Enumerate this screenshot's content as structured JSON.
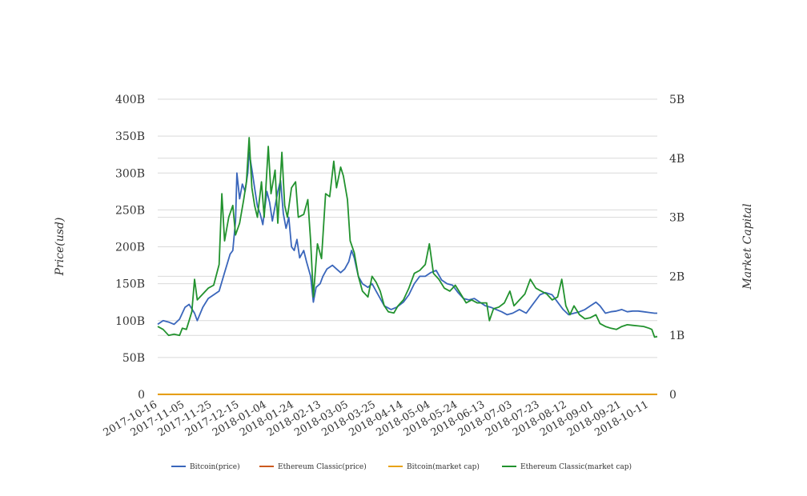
{
  "chart_data": {
    "type": "line",
    "title": "",
    "ylabel": "Price(usd)",
    "y2label": "Market Capital",
    "ylim": [
      0,
      400
    ],
    "y2lim": [
      0,
      5
    ],
    "y_ticks": [
      "0",
      "50B",
      "100B",
      "150B",
      "200B",
      "250B",
      "300B",
      "350B",
      "400B"
    ],
    "y2_ticks": [
      "0",
      "1B",
      "2B",
      "3B",
      "4B",
      "5B"
    ],
    "x_ticks": [
      "2017-10-16",
      "2017-11-05",
      "2017-11-25",
      "2017-12-15",
      "2018-01-04",
      "2018-01-24",
      "2018-02-13",
      "2018-03-05",
      "2018-03-25",
      "2018-04-14",
      "2018-05-04",
      "2018-05-24",
      "2018-06-13",
      "2018-07-03",
      "2018-07-23",
      "2018-08-12",
      "2018-09-01",
      "2018-09-21",
      "2018-10-11"
    ],
    "x_range": [
      "2017-10-16",
      "2018-10-17"
    ],
    "grid": true,
    "legend_position": "bottom",
    "series": [
      {
        "name": "Bitcoin(price)",
        "axis": "left",
        "color": "#3a66bb",
        "points": [
          [
            "2017-10-16",
            95
          ],
          [
            "2017-10-20",
            100
          ],
          [
            "2017-10-24",
            98
          ],
          [
            "2017-10-28",
            95
          ],
          [
            "2017-11-01",
            102
          ],
          [
            "2017-11-05",
            118
          ],
          [
            "2017-11-08",
            122
          ],
          [
            "2017-11-12",
            110
          ],
          [
            "2017-11-14",
            100
          ],
          [
            "2017-11-18",
            118
          ],
          [
            "2017-11-22",
            130
          ],
          [
            "2017-11-26",
            135
          ],
          [
            "2017-11-30",
            140
          ],
          [
            "2017-12-04",
            165
          ],
          [
            "2017-12-08",
            190
          ],
          [
            "2017-12-10",
            195
          ],
          [
            "2017-12-12",
            235
          ],
          [
            "2017-12-13",
            300
          ],
          [
            "2017-12-15",
            265
          ],
          [
            "2017-12-17",
            285
          ],
          [
            "2017-12-19",
            275
          ],
          [
            "2017-12-21",
            300
          ],
          [
            "2017-12-22",
            328
          ],
          [
            "2017-12-24",
            305
          ],
          [
            "2017-12-26",
            280
          ],
          [
            "2017-12-28",
            255
          ],
          [
            "2017-12-30",
            245
          ],
          [
            "2018-01-01",
            230
          ],
          [
            "2018-01-04",
            275
          ],
          [
            "2018-01-06",
            260
          ],
          [
            "2018-01-08",
            235
          ],
          [
            "2018-01-12",
            275
          ],
          [
            "2018-01-14",
            290
          ],
          [
            "2018-01-16",
            245
          ],
          [
            "2018-01-18",
            225
          ],
          [
            "2018-01-20",
            240
          ],
          [
            "2018-01-22",
            200
          ],
          [
            "2018-01-24",
            195
          ],
          [
            "2018-01-26",
            210
          ],
          [
            "2018-01-28",
            185
          ],
          [
            "2018-01-31",
            195
          ],
          [
            "2018-02-02",
            180
          ],
          [
            "2018-02-05",
            160
          ],
          [
            "2018-02-07",
            125
          ],
          [
            "2018-02-09",
            145
          ],
          [
            "2018-02-12",
            150
          ],
          [
            "2018-02-14",
            160
          ],
          [
            "2018-02-17",
            170
          ],
          [
            "2018-02-21",
            175
          ],
          [
            "2018-02-24",
            170
          ],
          [
            "2018-02-27",
            165
          ],
          [
            "2018-03-02",
            170
          ],
          [
            "2018-03-05",
            180
          ],
          [
            "2018-03-07",
            195
          ],
          [
            "2018-03-09",
            185
          ],
          [
            "2018-03-12",
            160
          ],
          [
            "2018-03-15",
            150
          ],
          [
            "2018-03-19",
            145
          ],
          [
            "2018-03-22",
            150
          ],
          [
            "2018-03-25",
            140
          ],
          [
            "2018-03-28",
            130
          ],
          [
            "2018-03-31",
            120
          ],
          [
            "2018-04-05",
            115
          ],
          [
            "2018-04-09",
            118
          ],
          [
            "2018-04-14",
            125
          ],
          [
            "2018-04-18",
            135
          ],
          [
            "2018-04-22",
            150
          ],
          [
            "2018-04-26",
            160
          ],
          [
            "2018-04-30",
            160
          ],
          [
            "2018-05-04",
            165
          ],
          [
            "2018-05-08",
            168
          ],
          [
            "2018-05-12",
            155
          ],
          [
            "2018-05-16",
            150
          ],
          [
            "2018-05-20",
            148
          ],
          [
            "2018-05-24",
            138
          ],
          [
            "2018-05-28",
            130
          ],
          [
            "2018-06-01",
            128
          ],
          [
            "2018-06-05",
            130
          ],
          [
            "2018-06-09",
            125
          ],
          [
            "2018-06-13",
            120
          ],
          [
            "2018-06-17",
            118
          ],
          [
            "2018-06-21",
            115
          ],
          [
            "2018-06-25",
            112
          ],
          [
            "2018-06-29",
            108
          ],
          [
            "2018-07-03",
            110
          ],
          [
            "2018-07-08",
            115
          ],
          [
            "2018-07-13",
            110
          ],
          [
            "2018-07-17",
            120
          ],
          [
            "2018-07-23",
            135
          ],
          [
            "2018-07-27",
            138
          ],
          [
            "2018-08-01",
            135
          ],
          [
            "2018-08-05",
            125
          ],
          [
            "2018-08-09",
            115
          ],
          [
            "2018-08-13",
            108
          ],
          [
            "2018-08-17",
            110
          ],
          [
            "2018-08-21",
            112
          ],
          [
            "2018-08-25",
            115
          ],
          [
            "2018-08-29",
            120
          ],
          [
            "2018-09-02",
            125
          ],
          [
            "2018-09-05",
            120
          ],
          [
            "2018-09-09",
            110
          ],
          [
            "2018-09-13",
            112
          ],
          [
            "2018-09-17",
            113
          ],
          [
            "2018-09-21",
            115
          ],
          [
            "2018-09-25",
            112
          ],
          [
            "2018-09-29",
            113
          ],
          [
            "2018-10-03",
            113
          ],
          [
            "2018-10-07",
            112
          ],
          [
            "2018-10-11",
            111
          ],
          [
            "2018-10-15",
            110
          ],
          [
            "2018-10-17",
            110
          ]
        ]
      },
      {
        "name": "Ethereum Classic(price)",
        "axis": "left",
        "color": "#cc5a1e",
        "points": [
          [
            "2017-10-16",
            0.02
          ],
          [
            "2018-10-17",
            0.01
          ]
        ]
      },
      {
        "name": "Bitcoin(market cap)",
        "axis": "right",
        "color": "#e8a317",
        "points": [
          [
            "2017-10-16",
            0.002
          ],
          [
            "2018-10-17",
            0.002
          ]
        ]
      },
      {
        "name": "Ethereum Classic(market cap)",
        "axis": "right",
        "color": "#22922e",
        "points": [
          [
            "2017-10-16",
            1.15
          ],
          [
            "2017-10-20",
            1.1
          ],
          [
            "2017-10-24",
            1.0
          ],
          [
            "2017-10-28",
            1.02
          ],
          [
            "2017-11-01",
            1.0
          ],
          [
            "2017-11-03",
            1.12
          ],
          [
            "2017-11-06",
            1.1
          ],
          [
            "2017-11-08",
            1.25
          ],
          [
            "2017-11-10",
            1.4
          ],
          [
            "2017-11-12",
            1.95
          ],
          [
            "2017-11-14",
            1.6
          ],
          [
            "2017-11-18",
            1.7
          ],
          [
            "2017-11-22",
            1.8
          ],
          [
            "2017-11-26",
            1.85
          ],
          [
            "2017-11-30",
            2.2
          ],
          [
            "2017-12-02",
            3.4
          ],
          [
            "2017-12-04",
            2.6
          ],
          [
            "2017-12-07",
            3.0
          ],
          [
            "2017-12-10",
            3.2
          ],
          [
            "2017-12-12",
            2.7
          ],
          [
            "2017-12-15",
            2.9
          ],
          [
            "2017-12-18",
            3.3
          ],
          [
            "2017-12-20",
            3.6
          ],
          [
            "2017-12-22",
            4.35
          ],
          [
            "2017-12-24",
            3.5
          ],
          [
            "2017-12-26",
            3.2
          ],
          [
            "2017-12-28",
            3.0
          ],
          [
            "2017-12-31",
            3.6
          ],
          [
            "2018-01-02",
            3.0
          ],
          [
            "2018-01-05",
            4.2
          ],
          [
            "2018-01-07",
            3.4
          ],
          [
            "2018-01-10",
            3.8
          ],
          [
            "2018-01-12",
            2.9
          ],
          [
            "2018-01-15",
            4.1
          ],
          [
            "2018-01-17",
            3.2
          ],
          [
            "2018-01-19",
            3.0
          ],
          [
            "2018-01-22",
            3.5
          ],
          [
            "2018-01-25",
            3.6
          ],
          [
            "2018-01-27",
            3.0
          ],
          [
            "2018-01-31",
            3.05
          ],
          [
            "2018-02-03",
            3.3
          ],
          [
            "2018-02-05",
            2.6
          ],
          [
            "2018-02-07",
            1.65
          ],
          [
            "2018-02-10",
            2.55
          ],
          [
            "2018-02-13",
            2.3
          ],
          [
            "2018-02-16",
            3.4
          ],
          [
            "2018-02-19",
            3.35
          ],
          [
            "2018-02-22",
            3.95
          ],
          [
            "2018-02-24",
            3.5
          ],
          [
            "2018-02-27",
            3.85
          ],
          [
            "2018-03-01",
            3.7
          ],
          [
            "2018-03-04",
            3.3
          ],
          [
            "2018-03-06",
            2.6
          ],
          [
            "2018-03-09",
            2.4
          ],
          [
            "2018-03-12",
            2.0
          ],
          [
            "2018-03-15",
            1.75
          ],
          [
            "2018-03-19",
            1.65
          ],
          [
            "2018-03-22",
            2.0
          ],
          [
            "2018-03-25",
            1.9
          ],
          [
            "2018-03-28",
            1.75
          ],
          [
            "2018-03-31",
            1.5
          ],
          [
            "2018-04-03",
            1.4
          ],
          [
            "2018-04-07",
            1.38
          ],
          [
            "2018-04-10",
            1.5
          ],
          [
            "2018-04-14",
            1.6
          ],
          [
            "2018-04-18",
            1.8
          ],
          [
            "2018-04-22",
            2.05
          ],
          [
            "2018-04-26",
            2.1
          ],
          [
            "2018-04-30",
            2.2
          ],
          [
            "2018-05-03",
            2.55
          ],
          [
            "2018-05-06",
            2.05
          ],
          [
            "2018-05-10",
            1.95
          ],
          [
            "2018-05-14",
            1.8
          ],
          [
            "2018-05-18",
            1.75
          ],
          [
            "2018-05-22",
            1.85
          ],
          [
            "2018-05-26",
            1.7
          ],
          [
            "2018-05-30",
            1.55
          ],
          [
            "2018-06-03",
            1.6
          ],
          [
            "2018-06-07",
            1.55
          ],
          [
            "2018-06-11",
            1.55
          ],
          [
            "2018-06-14",
            1.55
          ],
          [
            "2018-06-16",
            1.25
          ],
          [
            "2018-06-19",
            1.45
          ],
          [
            "2018-06-23",
            1.48
          ],
          [
            "2018-06-27",
            1.55
          ],
          [
            "2018-07-01",
            1.75
          ],
          [
            "2018-07-04",
            1.5
          ],
          [
            "2018-07-08",
            1.6
          ],
          [
            "2018-07-12",
            1.7
          ],
          [
            "2018-07-16",
            1.95
          ],
          [
            "2018-07-20",
            1.8
          ],
          [
            "2018-07-24",
            1.75
          ],
          [
            "2018-07-28",
            1.7
          ],
          [
            "2018-08-01",
            1.6
          ],
          [
            "2018-08-05",
            1.65
          ],
          [
            "2018-08-08",
            1.95
          ],
          [
            "2018-08-11",
            1.5
          ],
          [
            "2018-08-14",
            1.35
          ],
          [
            "2018-08-17",
            1.5
          ],
          [
            "2018-08-21",
            1.35
          ],
          [
            "2018-08-25",
            1.28
          ],
          [
            "2018-08-29",
            1.3
          ],
          [
            "2018-09-02",
            1.35
          ],
          [
            "2018-09-05",
            1.2
          ],
          [
            "2018-09-09",
            1.15
          ],
          [
            "2018-09-13",
            1.12
          ],
          [
            "2018-09-17",
            1.1
          ],
          [
            "2018-09-21",
            1.15
          ],
          [
            "2018-09-25",
            1.18
          ],
          [
            "2018-09-29",
            1.17
          ],
          [
            "2018-10-03",
            1.16
          ],
          [
            "2018-10-07",
            1.15
          ],
          [
            "2018-10-11",
            1.12
          ],
          [
            "2018-10-13",
            1.1
          ],
          [
            "2018-10-15",
            0.97
          ],
          [
            "2018-10-17",
            0.98
          ]
        ]
      }
    ]
  }
}
